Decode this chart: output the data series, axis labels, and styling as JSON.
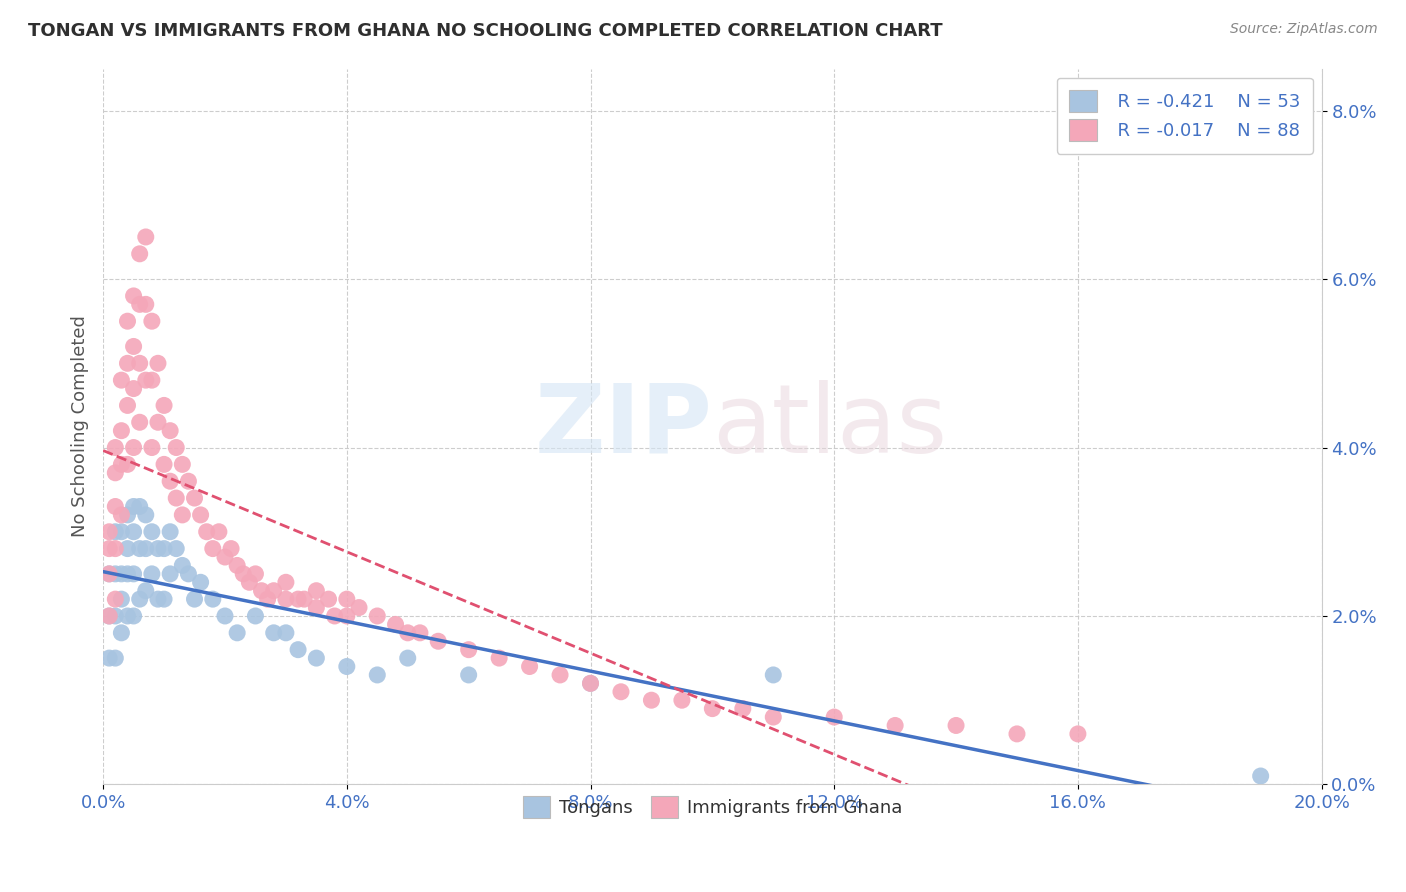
{
  "title": "TONGAN VS IMMIGRANTS FROM GHANA NO SCHOOLING COMPLETED CORRELATION CHART",
  "source": "Source: ZipAtlas.com",
  "ylabel": "No Schooling Completed",
  "xlim": [
    0.0,
    0.2
  ],
  "ylim": [
    0.0,
    0.085
  ],
  "xtick_vals": [
    0.0,
    0.04,
    0.08,
    0.12,
    0.16,
    0.2
  ],
  "ytick_vals": [
    0.0,
    0.02,
    0.04,
    0.06,
    0.08
  ],
  "xtick_labels": [
    "0.0%",
    "4.0%",
    "8.0%",
    "12.0%",
    "16.0%",
    "20.0%"
  ],
  "ytick_labels": [
    "0.0%",
    "2.0%",
    "4.0%",
    "6.0%",
    "8.0%"
  ],
  "tongan_color": "#a8c4e0",
  "ghana_color": "#f4a7b9",
  "tongan_line_color": "#4472c4",
  "ghana_line_color": "#e05070",
  "background_color": "#ffffff",
  "grid_color": "#c8c8c8",
  "legend_r_tongan": "R = -0.421",
  "legend_n_tongan": "N = 53",
  "legend_r_ghana": "R = -0.017",
  "legend_n_ghana": "N = 88",
  "watermark_zip": "ZIP",
  "watermark_atlas": "atlas",
  "title_fontsize": 13,
  "tick_fontsize": 13,
  "label_fontsize": 13,
  "tongan_x": [
    0.001,
    0.001,
    0.001,
    0.002,
    0.002,
    0.002,
    0.002,
    0.003,
    0.003,
    0.003,
    0.003,
    0.004,
    0.004,
    0.004,
    0.004,
    0.005,
    0.005,
    0.005,
    0.005,
    0.006,
    0.006,
    0.006,
    0.007,
    0.007,
    0.007,
    0.008,
    0.008,
    0.009,
    0.009,
    0.01,
    0.01,
    0.011,
    0.011,
    0.012,
    0.013,
    0.014,
    0.015,
    0.016,
    0.018,
    0.02,
    0.022,
    0.025,
    0.028,
    0.03,
    0.032,
    0.035,
    0.04,
    0.045,
    0.05,
    0.06,
    0.08,
    0.11,
    0.19
  ],
  "tongan_y": [
    0.025,
    0.02,
    0.015,
    0.03,
    0.025,
    0.02,
    0.015,
    0.03,
    0.025,
    0.022,
    0.018,
    0.032,
    0.028,
    0.025,
    0.02,
    0.033,
    0.03,
    0.025,
    0.02,
    0.033,
    0.028,
    0.022,
    0.032,
    0.028,
    0.023,
    0.03,
    0.025,
    0.028,
    0.022,
    0.028,
    0.022,
    0.03,
    0.025,
    0.028,
    0.026,
    0.025,
    0.022,
    0.024,
    0.022,
    0.02,
    0.018,
    0.02,
    0.018,
    0.018,
    0.016,
    0.015,
    0.014,
    0.013,
    0.015,
    0.013,
    0.012,
    0.013,
    0.001
  ],
  "ghana_x": [
    0.001,
    0.001,
    0.001,
    0.001,
    0.002,
    0.002,
    0.002,
    0.002,
    0.002,
    0.003,
    0.003,
    0.003,
    0.003,
    0.004,
    0.004,
    0.004,
    0.004,
    0.005,
    0.005,
    0.005,
    0.005,
    0.006,
    0.006,
    0.006,
    0.006,
    0.007,
    0.007,
    0.007,
    0.008,
    0.008,
    0.008,
    0.009,
    0.009,
    0.01,
    0.01,
    0.011,
    0.011,
    0.012,
    0.012,
    0.013,
    0.013,
    0.014,
    0.015,
    0.016,
    0.017,
    0.018,
    0.019,
    0.02,
    0.021,
    0.022,
    0.023,
    0.024,
    0.025,
    0.026,
    0.027,
    0.028,
    0.03,
    0.03,
    0.032,
    0.033,
    0.035,
    0.035,
    0.037,
    0.038,
    0.04,
    0.04,
    0.042,
    0.045,
    0.048,
    0.05,
    0.052,
    0.055,
    0.06,
    0.065,
    0.07,
    0.075,
    0.08,
    0.085,
    0.09,
    0.095,
    0.1,
    0.105,
    0.11,
    0.12,
    0.13,
    0.14,
    0.15,
    0.16
  ],
  "ghana_y": [
    0.03,
    0.028,
    0.025,
    0.02,
    0.04,
    0.037,
    0.033,
    0.028,
    0.022,
    0.048,
    0.042,
    0.038,
    0.032,
    0.055,
    0.05,
    0.045,
    0.038,
    0.058,
    0.052,
    0.047,
    0.04,
    0.063,
    0.057,
    0.05,
    0.043,
    0.065,
    0.057,
    0.048,
    0.055,
    0.048,
    0.04,
    0.05,
    0.043,
    0.045,
    0.038,
    0.042,
    0.036,
    0.04,
    0.034,
    0.038,
    0.032,
    0.036,
    0.034,
    0.032,
    0.03,
    0.028,
    0.03,
    0.027,
    0.028,
    0.026,
    0.025,
    0.024,
    0.025,
    0.023,
    0.022,
    0.023,
    0.024,
    0.022,
    0.022,
    0.022,
    0.023,
    0.021,
    0.022,
    0.02,
    0.022,
    0.02,
    0.021,
    0.02,
    0.019,
    0.018,
    0.018,
    0.017,
    0.016,
    0.015,
    0.014,
    0.013,
    0.012,
    0.011,
    0.01,
    0.01,
    0.009,
    0.009,
    0.008,
    0.008,
    0.007,
    0.007,
    0.006,
    0.006
  ],
  "tongan_trendline": [
    0.029,
    0.0015
  ],
  "ghana_trendline": [
    0.03,
    0.0005
  ]
}
